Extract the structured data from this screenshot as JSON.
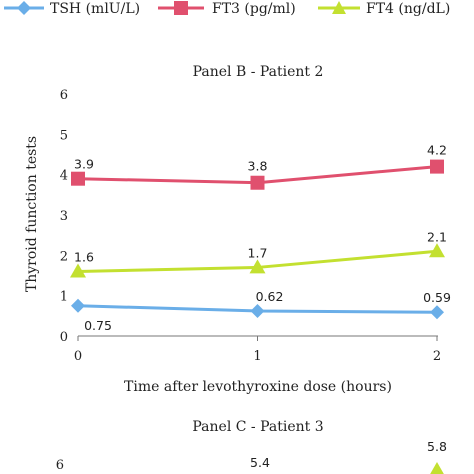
{
  "legend": [
    {
      "name": "TSH (mlU/L)",
      "color": "#6aaee8",
      "marker": "diamond"
    },
    {
      "name": "FT3 (pg/ml)",
      "color": "#e0506e",
      "marker": "square"
    },
    {
      "name": "FT4 (ng/dL)",
      "color": "#c3e030",
      "marker": "triangle"
    }
  ],
  "chart_data": [
    {
      "type": "line",
      "title": "Panel B - Patient 2",
      "xlabel": "Time after levothyroxine dose (hours)",
      "ylabel": "Thyroid function tests",
      "x": [
        0,
        1,
        2
      ],
      "xticks": [
        "0",
        "1",
        "2"
      ],
      "yticks": [
        "0",
        "1",
        "2",
        "3",
        "4",
        "5",
        "6"
      ],
      "ylim": [
        0,
        6
      ],
      "grid": false,
      "legend_position": "top",
      "series": [
        {
          "name": "TSH (mlU/L)",
          "values": [
            0.75,
            0.62,
            0.59
          ],
          "labels": [
            "0.75",
            "0.62",
            "0.59"
          ]
        },
        {
          "name": "FT3 (pg/ml)",
          "values": [
            3.9,
            3.8,
            4.2
          ],
          "labels": [
            "3.9",
            "3.8",
            "4.2"
          ]
        },
        {
          "name": "FT4 (ng/dL)",
          "values": [
            1.6,
            1.7,
            2.1
          ],
          "labels": [
            "1.6",
            "1.7",
            "2.1"
          ]
        }
      ]
    },
    {
      "type": "line",
      "title": "Panel C - Patient 3",
      "yticks": [
        "6"
      ],
      "visible_labels": [
        "5.4",
        "5.8"
      ],
      "series": [
        {
          "name": "FT4 (ng/dL)",
          "values": [
            null,
            null,
            5.8
          ]
        }
      ]
    }
  ]
}
